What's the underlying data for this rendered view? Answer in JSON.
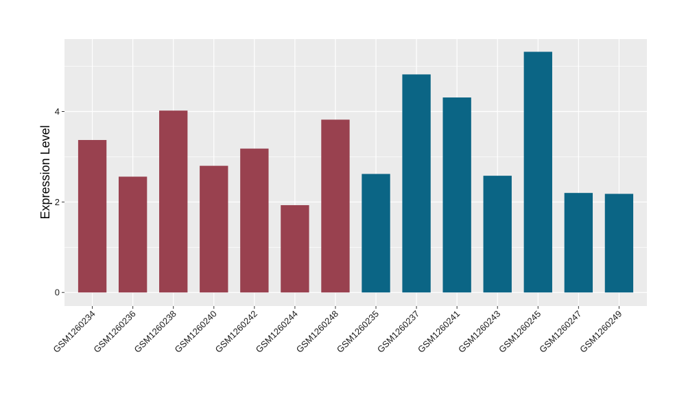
{
  "chart_data": {
    "type": "bar",
    "title": "",
    "xlabel": "",
    "ylabel": "Expression Level",
    "ylim": [
      -0.3,
      5.6
    ],
    "yticks": [
      0,
      2,
      4
    ],
    "grid": true,
    "legend": "none",
    "background": "#ebebeb",
    "gridline_color": "#ffffff",
    "categories": [
      "GSM1260234",
      "GSM1260236",
      "GSM1260238",
      "GSM1260240",
      "GSM1260242",
      "GSM1260244",
      "GSM1260248",
      "GSM1260235",
      "GSM1260237",
      "GSM1260241",
      "GSM1260243",
      "GSM1260245",
      "GSM1260247",
      "GSM1260249"
    ],
    "values": [
      3.37,
      2.56,
      4.02,
      2.8,
      3.18,
      1.93,
      3.82,
      2.62,
      4.82,
      4.31,
      2.58,
      5.32,
      2.2,
      2.18
    ],
    "colors": [
      "#99414f",
      "#99414f",
      "#99414f",
      "#99414f",
      "#99414f",
      "#99414f",
      "#99414f",
      "#0b6585",
      "#0b6585",
      "#0b6585",
      "#0b6585",
      "#0b6585",
      "#0b6585",
      "#0b6585"
    ]
  }
}
